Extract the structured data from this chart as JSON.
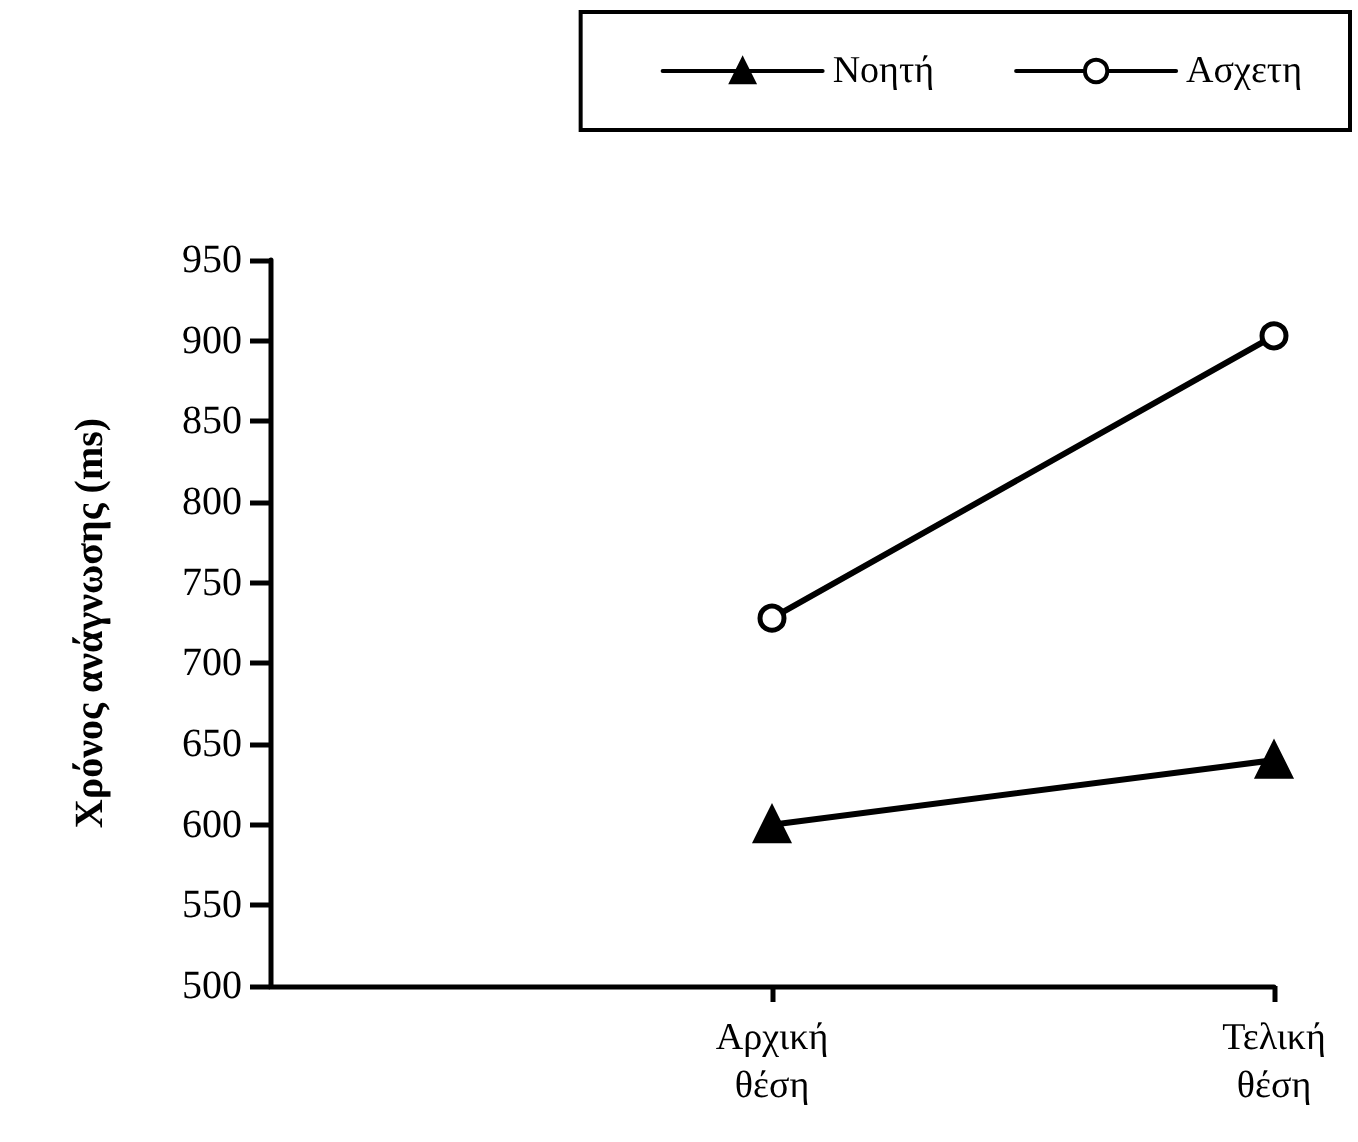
{
  "chart_data": {
    "type": "line",
    "ylabel": "Χρόνος ανάγνωσης (ms)",
    "categories": [
      null,
      "Αρχική θέση",
      "Τελική θέση"
    ],
    "series": [
      {
        "name": "Νοητή",
        "color": "#000000",
        "marker": "triangle",
        "values": [
          null,
          600,
          640
        ]
      },
      {
        "name": "Ασχετη",
        "color": "#000000",
        "marker": "circle",
        "values": [
          null,
          728,
          903
        ]
      }
    ],
    "ylim": [
      500,
      950
    ],
    "yticks": [
      500,
      550,
      600,
      650,
      700,
      750,
      800,
      850,
      900,
      950
    ],
    "grid": false,
    "legend": "top right",
    "line_style": "solid"
  }
}
